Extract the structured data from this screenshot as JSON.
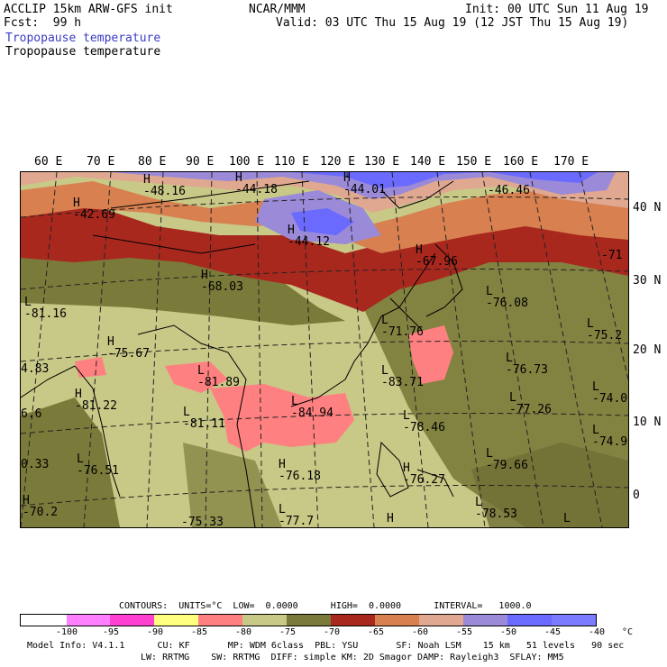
{
  "header": {
    "left1": "ACCLIP 15km ARW-GFS init",
    "left2": "Fcst:  99 h",
    "center": "NCAR/MMM",
    "right1": "Init: 00 UTC Sun 11 Aug 19",
    "right2": "Valid: 03 UTC Thu 15 Aug 19 (12 JST Thu 15 Aug 19)",
    "field1": "Tropopause temperature",
    "field2": "Tropopause temperature"
  },
  "lon_labels": [
    "60 E",
    "70 E",
    "80 E",
    "90 E",
    "100 E",
    "110 E",
    "120 E",
    "130 E",
    "140 E",
    "150 E",
    "160 E",
    "170 E"
  ],
  "lat_labels": [
    "40 N",
    "30 N",
    "20 N",
    "10 N",
    "0"
  ],
  "markers": [
    {
      "kind": "H",
      "label": "-48.16"
    },
    {
      "kind": "H",
      "label": "-44.18"
    },
    {
      "kind": "H",
      "label": "-44.01"
    },
    {
      "kind": "",
      "label": "-46.46"
    },
    {
      "kind": "H",
      "label": "-42.69"
    },
    {
      "kind": "H",
      "label": "-44.12"
    },
    {
      "kind": "H",
      "label": "-67.96"
    },
    {
      "kind": "",
      "label": "-71"
    },
    {
      "kind": "H",
      "label": "-68.03"
    },
    {
      "kind": "L",
      "label": "-81.16"
    },
    {
      "kind": "L",
      "label": "-76.08"
    },
    {
      "kind": "L",
      "label": "-75.2"
    },
    {
      "kind": "H",
      "label": "-75.67"
    },
    {
      "kind": "L",
      "label": "-71.76"
    },
    {
      "kind": "",
      "label": "4.83"
    },
    {
      "kind": "L",
      "label": "-81.89"
    },
    {
      "kind": "L",
      "label": "-83.71"
    },
    {
      "kind": "L",
      "label": "-76.73"
    },
    {
      "kind": "L",
      "label": "-74.0"
    },
    {
      "kind": "H",
      "label": "-81.22"
    },
    {
      "kind": "L",
      "label": "-81.11"
    },
    {
      "kind": "L",
      "label": "-84.94"
    },
    {
      "kind": "L",
      "label": "-77.26"
    },
    {
      "kind": "",
      "label": "6.6"
    },
    {
      "kind": "L",
      "label": "-78.46"
    },
    {
      "kind": "L",
      "label": "-74.9"
    },
    {
      "kind": "",
      "label": "0.33"
    },
    {
      "kind": "L",
      "label": "-76.51"
    },
    {
      "kind": "H",
      "label": "-76.18"
    },
    {
      "kind": "H",
      "label": "-76.27"
    },
    {
      "kind": "L",
      "label": "-79.66"
    },
    {
      "kind": "H",
      "label": "-70.2"
    },
    {
      "kind": "",
      "label": "-75.33"
    },
    {
      "kind": "L",
      "label": "-77.7"
    },
    {
      "kind": "L",
      "label": "-78.53"
    },
    {
      "kind": "H",
      "label": ""
    },
    {
      "kind": "L",
      "label": ""
    }
  ],
  "contours": {
    "line": "CONTOURS:  UNITS=°C  LOW=  0.0000      HIGH=  0.0000      INTERVAL=   1000.0"
  },
  "colorbar": {
    "colors": [
      "#ffffff",
      "#ff80ff",
      "#ff3fcf",
      "#ffff80",
      "#ff8080",
      "#c8c887",
      "#7a7a3a",
      "#a8281e",
      "#d88050",
      "#e0a890",
      "#9a8ad8",
      "#6a6aff",
      "#7b7bff"
    ],
    "labels": [
      "-100",
      "-95",
      "-90",
      "-85",
      "-80",
      "-75",
      "-70",
      "-65",
      "-60",
      "-55",
      "-50",
      "-45",
      "-40"
    ],
    "unit": "°C"
  },
  "model_info": {
    "line1": "Model Info: V4.1.1      CU: KF       MP: WDM 6class  PBL: YSU       SF: Noah LSM    15 km   51 levels   90 sec",
    "line2": "LW: RRTMG    SW: RRTMG  DIFF: simple KM: 2D Smagor DAMP: Rayleigh3  SFLAY: MM5"
  }
}
